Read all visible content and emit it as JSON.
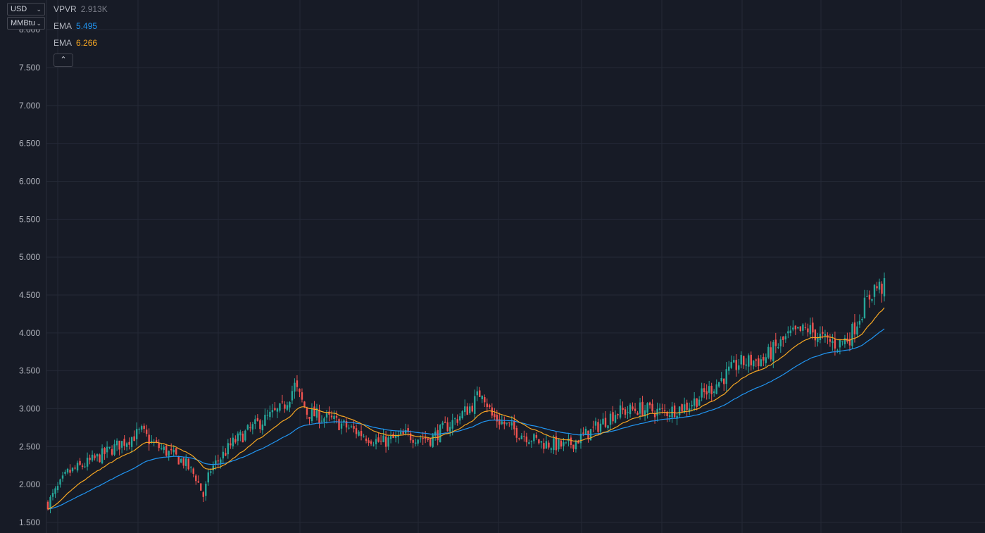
{
  "units": {
    "currency": "USD",
    "measure": "MMBtu"
  },
  "legend": {
    "vpvr": {
      "name": "VPVR",
      "value": "2.913K"
    },
    "ema_fast": {
      "name": "EMA",
      "value": "5.495",
      "color": "#2196f3"
    },
    "ema_slow": {
      "name": "EMA",
      "value": "6.266",
      "color": "#f5a623"
    }
  },
  "colors": {
    "background": "#171b26",
    "grid": "#242936",
    "up_candle": "#26a69a",
    "down_candle": "#ef5350",
    "axis_text": "#b2b5be"
  },
  "icons": {
    "collapse": "chevron-up-icon",
    "dropdown": "chevron-down-icon"
  },
  "chart_data": {
    "type": "candlestick",
    "price_axis": {
      "ticks": [
        "1.500",
        "2.000",
        "2.500",
        "3.000",
        "3.500",
        "4.000",
        "4.500",
        "5.000",
        "5.500",
        "6.000",
        "6.500",
        "7.000",
        "7.500",
        "8.000"
      ],
      "range": [
        1.45,
        8.15
      ]
    },
    "grid": true,
    "bar_count": 340,
    "price_path": [
      [
        0,
        1.75
      ],
      [
        8,
        2.15
      ],
      [
        20,
        2.35
      ],
      [
        30,
        2.55
      ],
      [
        38,
        2.7
      ],
      [
        42,
        2.55
      ],
      [
        55,
        2.3
      ],
      [
        60,
        2.1
      ],
      [
        63,
        1.85
      ],
      [
        66,
        2.2
      ],
      [
        75,
        2.55
      ],
      [
        85,
        2.8
      ],
      [
        95,
        3.0
      ],
      [
        100,
        3.3
      ],
      [
        105,
        2.95
      ],
      [
        115,
        2.85
      ],
      [
        125,
        2.7
      ],
      [
        135,
        2.55
      ],
      [
        145,
        2.65
      ],
      [
        155,
        2.6
      ],
      [
        165,
        2.85
      ],
      [
        172,
        3.05
      ],
      [
        176,
        3.25
      ],
      [
        180,
        2.9
      ],
      [
        190,
        2.7
      ],
      [
        200,
        2.55
      ],
      [
        210,
        2.5
      ],
      [
        220,
        2.7
      ],
      [
        230,
        2.95
      ],
      [
        240,
        3.0
      ],
      [
        250,
        2.95
      ],
      [
        260,
        3.05
      ],
      [
        270,
        3.3
      ],
      [
        280,
        3.6
      ],
      [
        290,
        3.65
      ],
      [
        300,
        3.95
      ],
      [
        308,
        4.05
      ],
      [
        315,
        3.9
      ],
      [
        320,
        3.85
      ],
      [
        325,
        3.95
      ],
      [
        330,
        4.3
      ],
      [
        335,
        4.6
      ]
    ]
  }
}
